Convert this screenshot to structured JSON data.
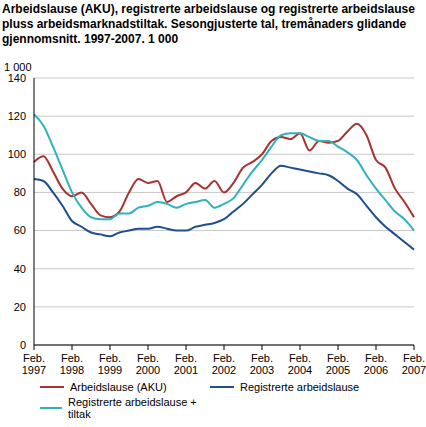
{
  "chart_data": {
    "type": "line",
    "title": "Arbeidslause (AKU), registrerte arbeidslause og registrerte arbeidslause pluss arbeidsmarknadstiltak. Sesongjusterte tal, tremånaders glidande gjennomsnitt. 1997-2007. 1 000",
    "ylabel": "1 000",
    "categories": [
      "Feb. 1997",
      null,
      null,
      null,
      "Feb. 1998",
      null,
      null,
      null,
      "Feb. 1999",
      null,
      null,
      null,
      "Feb. 2000",
      null,
      null,
      null,
      "Feb. 2001",
      null,
      null,
      null,
      "Feb. 2002",
      null,
      null,
      null,
      "Feb. 2003",
      null,
      null,
      null,
      "Feb. 2004",
      null,
      null,
      null,
      "Feb. 2005",
      null,
      null,
      null,
      "Feb. 2006",
      null,
      null,
      null,
      "Feb. 2007"
    ],
    "series": [
      {
        "name": "Arbeidslause (AKU)",
        "color": "#a8322d",
        "values": [
          96,
          99,
          91,
          82,
          78,
          80,
          74,
          68,
          67,
          70,
          80,
          87,
          85,
          86,
          75,
          78,
          80,
          85,
          82,
          86,
          80,
          85,
          93,
          96,
          100,
          107,
          109,
          108,
          111,
          102,
          107,
          106,
          107,
          112,
          116,
          110,
          97,
          93,
          82,
          75,
          67
        ]
      },
      {
        "name": "Registrerte arbeidslause",
        "color": "#1f4e8c",
        "values": [
          87,
          86,
          80,
          73,
          65,
          62,
          59,
          58,
          57,
          59,
          60,
          61,
          61,
          62,
          61,
          60,
          60,
          62,
          63,
          64,
          66,
          70,
          74,
          79,
          84,
          90,
          94,
          93,
          92,
          91,
          90,
          89,
          86,
          82,
          79,
          73,
          67,
          62,
          58,
          54,
          50
        ]
      },
      {
        "name": "Registrerte arbeidslause + tiltak",
        "color": "#2cb3bd",
        "values": [
          121,
          115,
          104,
          92,
          80,
          72,
          67,
          66,
          66,
          69,
          69,
          72,
          73,
          75,
          74,
          72,
          74,
          75,
          76,
          72,
          74,
          77,
          84,
          91,
          97,
          104,
          110,
          111,
          111,
          109,
          107,
          107,
          104,
          101,
          97,
          89,
          82,
          76,
          70,
          66,
          60
        ]
      }
    ],
    "ylim": [
      0,
      140
    ],
    "yticks": [
      0,
      20,
      40,
      60,
      80,
      100,
      120,
      140
    ],
    "grid": true,
    "legend": "bottom"
  }
}
